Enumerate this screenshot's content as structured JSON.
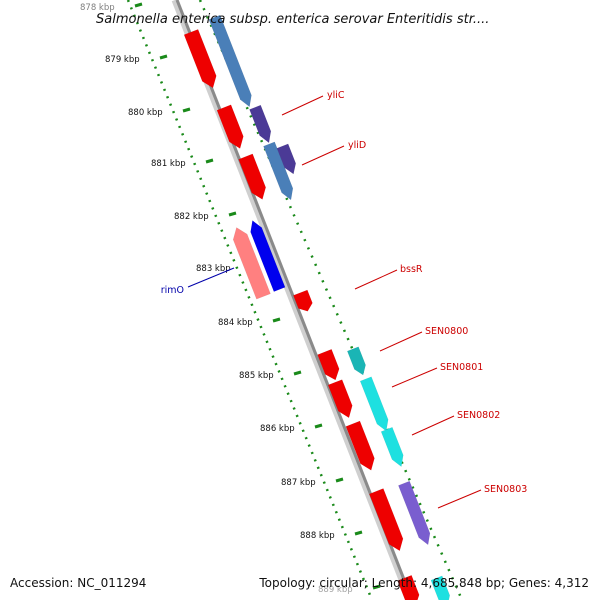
{
  "title": "Salmonella enterica subsp. enterica serovar Enteritidis str....",
  "footer": {
    "accession": "Accession: NC_011294",
    "summary": "Topology: circular; Length: 4,685,848 bp; Genes: 4,312"
  },
  "ticks": [
    {
      "label": "878 kbp",
      "kbp": 878
    },
    {
      "label": "879 kbp",
      "kbp": 879
    },
    {
      "label": "880 kbp",
      "kbp": 880
    },
    {
      "label": "881 kbp",
      "kbp": 881
    },
    {
      "label": "882 kbp",
      "kbp": 882
    },
    {
      "label": "883 kbp",
      "kbp": 883
    },
    {
      "label": "884 kbp",
      "kbp": 884
    },
    {
      "label": "885 kbp",
      "kbp": 885
    },
    {
      "label": "886 kbp",
      "kbp": 886
    },
    {
      "label": "887 kbp",
      "kbp": 887
    },
    {
      "label": "888 kbp",
      "kbp": 888
    },
    {
      "label": "889 kbp",
      "kbp": 889
    }
  ],
  "gene_labels": [
    {
      "name": "yliC",
      "color": "#cc0000"
    },
    {
      "name": "yliD",
      "color": "#cc0000"
    },
    {
      "name": "bssR",
      "color": "#cc0000"
    },
    {
      "name": "SEN0800",
      "color": "#cc0000"
    },
    {
      "name": "SEN0801",
      "color": "#cc0000"
    },
    {
      "name": "SEN0802",
      "color": "#cc0000"
    },
    {
      "name": "SEN0803",
      "color": "#cc0000"
    },
    {
      "name": "rimO",
      "color": "#0000aa"
    }
  ],
  "colors": {
    "cds_plus": "#ee0000",
    "cds_minus": "#ff8080",
    "cog_blue": "#4a7fb8",
    "cog_indigo": "#4b3a96",
    "cog_cyan": "#1ee0e0",
    "cog_teal": "#1ab5b5",
    "cog_purple": "#7a5ecf",
    "cog_pure_blue": "#0000ee",
    "backbone": "#8a8a8a",
    "ticks": "#1a8a1a"
  }
}
